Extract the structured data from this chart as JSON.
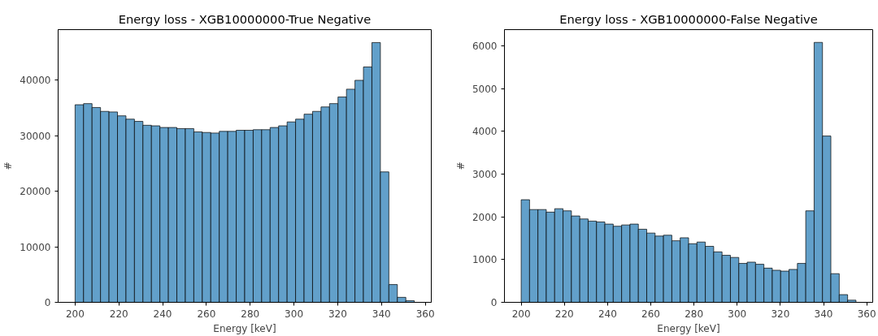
{
  "chart_data": [
    {
      "type": "histogram",
      "title": "Energy loss - XGB10000000-True Negative",
      "xlabel": "Energy [keV]",
      "ylabel": "#",
      "color": "#62a0ca",
      "bins": [
        200,
        203.875,
        207.75,
        211.625,
        215.5,
        219.375,
        223.25,
        227.125,
        231,
        234.875,
        238.75,
        242.625,
        246.5,
        250.375,
        254.25,
        258.125,
        262,
        265.875,
        269.75,
        273.625,
        277.5,
        281.375,
        285.25,
        289.125,
        293,
        296.875,
        300.75,
        304.625,
        308.5,
        312.375,
        316.25,
        320.125,
        324,
        327.875,
        331.75,
        335.625,
        339.5,
        343.375,
        347.25,
        351.125,
        355
      ],
      "values": [
        35600,
        35800,
        35100,
        34400,
        34300,
        33600,
        33000,
        32600,
        31900,
        31800,
        31500,
        31500,
        31300,
        31300,
        30700,
        30600,
        30500,
        30800,
        30800,
        31000,
        31000,
        31100,
        31100,
        31500,
        31800,
        32500,
        33000,
        33900,
        34400,
        35200,
        35800,
        37000,
        38400,
        40000,
        42400,
        46800,
        23500,
        3200,
        900,
        300
      ],
      "xlim": [
        192.25,
        362.75
      ],
      "ylim": [
        0,
        49130
      ],
      "xticks": [
        200,
        220,
        240,
        260,
        280,
        300,
        320,
        340,
        360
      ],
      "yticks": [
        0,
        10000,
        20000,
        30000,
        40000
      ],
      "grid": false
    },
    {
      "type": "histogram",
      "title": "Energy loss - XGB10000000-False Negative",
      "xlabel": "Energy [keV]",
      "ylabel": "#",
      "color": "#62a0ca",
      "bins": [
        200,
        203.875,
        207.75,
        211.625,
        215.5,
        219.375,
        223.25,
        227.125,
        231,
        234.875,
        238.75,
        242.625,
        246.5,
        250.375,
        254.25,
        258.125,
        262,
        265.875,
        269.75,
        273.625,
        277.5,
        281.375,
        285.25,
        289.125,
        293,
        296.875,
        300.75,
        304.625,
        308.5,
        312.375,
        316.25,
        320.125,
        324,
        327.875,
        331.75,
        335.625,
        339.5,
        343.375,
        347.25,
        351.125,
        355
      ],
      "values": [
        2400,
        2170,
        2170,
        2110,
        2190,
        2140,
        2020,
        1950,
        1900,
        1880,
        1830,
        1780,
        1810,
        1830,
        1710,
        1620,
        1550,
        1570,
        1440,
        1510,
        1370,
        1410,
        1310,
        1180,
        1100,
        1050,
        910,
        940,
        890,
        800,
        750,
        730,
        770,
        910,
        2140,
        6080,
        3890,
        670,
        180,
        50
      ],
      "xlim": [
        192.25,
        362.75
      ],
      "ylim": [
        0,
        6379
      ],
      "xticks": [
        200,
        220,
        240,
        260,
        280,
        300,
        320,
        340,
        360
      ],
      "yticks": [
        0,
        1000,
        2000,
        3000,
        4000,
        5000,
        6000
      ],
      "grid": false
    }
  ]
}
